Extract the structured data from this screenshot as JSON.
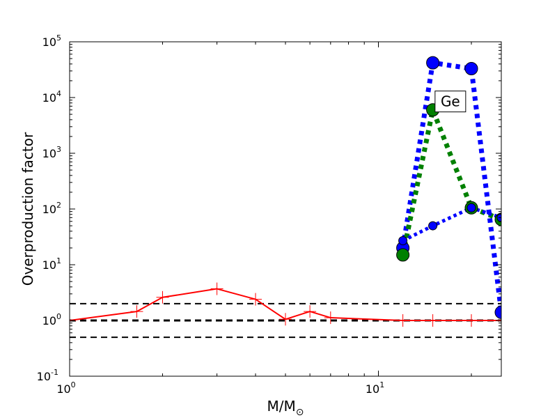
{
  "chart_data": {
    "type": "line",
    "xscale": "log",
    "yscale": "log",
    "xlim": [
      1,
      25
    ],
    "ylim": [
      0.1,
      100000
    ],
    "grid": false,
    "xlabel": {
      "main": "M/M",
      "sub": "⊙"
    },
    "ylabel": "Overproduction factor",
    "x_ticks": [
      {
        "value": 1,
        "base": "10",
        "exp": "0"
      },
      {
        "value": 10,
        "base": "10",
        "exp": "1"
      }
    ],
    "y_ticks": [
      {
        "value": 0.1,
        "base": "10",
        "exp": "-1"
      },
      {
        "value": 1,
        "base": "10",
        "exp": "0"
      },
      {
        "value": 10,
        "base": "10",
        "exp": "1"
      },
      {
        "value": 100,
        "base": "10",
        "exp": "2"
      },
      {
        "value": 1000,
        "base": "10",
        "exp": "3"
      },
      {
        "value": 10000,
        "base": "10",
        "exp": "4"
      },
      {
        "value": 100000,
        "base": "10",
        "exp": "5"
      }
    ],
    "reference_lines": [
      {
        "y": 1,
        "style": "dashed",
        "color": "#000000",
        "width": 3
      },
      {
        "y": 2,
        "style": "dashed",
        "color": "#000000",
        "width": 2
      },
      {
        "y": 0.5,
        "style": "dashed",
        "color": "#000000",
        "width": 2
      }
    ],
    "series": [
      {
        "color": "#ff0000",
        "style": "solid",
        "marker": "plus",
        "line_width": 2,
        "x": [
          1,
          1.65,
          2,
          3,
          4,
          5,
          6,
          7,
          12,
          15,
          20,
          25
        ],
        "y": [
          1.0,
          1.45,
          2.6,
          3.7,
          2.4,
          1.05,
          1.45,
          1.12,
          1.0,
          1.0,
          1.0,
          1.0
        ]
      },
      {
        "color": "#0000ff",
        "style": "dotted",
        "marker": "circle",
        "line_width": 7,
        "marker_size": 9,
        "x": [
          12,
          15,
          20,
          25
        ],
        "y": [
          20,
          42000,
          33000,
          1.4
        ]
      },
      {
        "color": "#008000",
        "style": "dotted",
        "marker": "circle",
        "line_width": 7,
        "marker_size": 9,
        "x": [
          12,
          15,
          20,
          25
        ],
        "y": [
          15,
          6000,
          105,
          65
        ]
      },
      {
        "color": "#0000ff",
        "style": "dotted",
        "marker": "circle",
        "line_width": 5,
        "marker_size": 6,
        "x": [
          12,
          15,
          20,
          25
        ],
        "y": [
          27,
          50,
          105,
          70
        ]
      }
    ],
    "annotations": [
      {
        "text": "Ge",
        "x": 17.1,
        "y": 8500
      }
    ]
  }
}
